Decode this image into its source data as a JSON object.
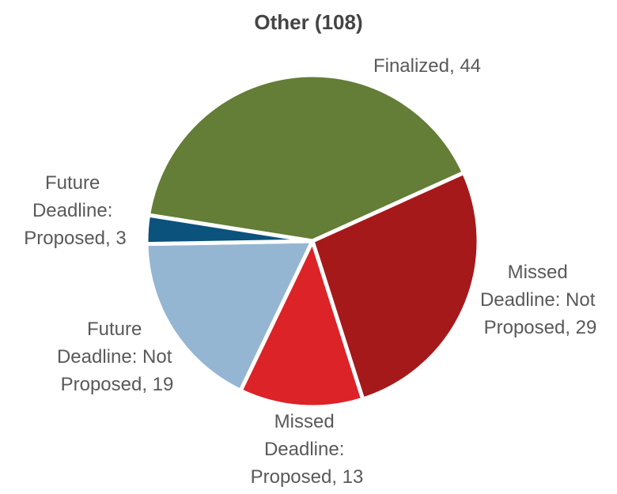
{
  "chart_data": {
    "type": "pie",
    "title": "Other (108)",
    "categories": [
      "Finalized",
      "Missed Deadline: Not Proposed",
      "Missed Deadline: Proposed",
      "Future Deadline: Not Proposed",
      "Future Deadline: Proposed"
    ],
    "values": [
      44,
      29,
      13,
      19,
      3
    ],
    "value_labels": [
      "Finalized, 44",
      "Missed Deadline: Not Proposed, 29",
      "Missed Deadline: Proposed, 13",
      "Future Deadline: Not Proposed, 19",
      "Future Deadline: Proposed, 3"
    ],
    "colors": [
      "#647d37",
      "#a6191b",
      "#dc2327",
      "#95b6d2",
      "#0b527d"
    ]
  }
}
